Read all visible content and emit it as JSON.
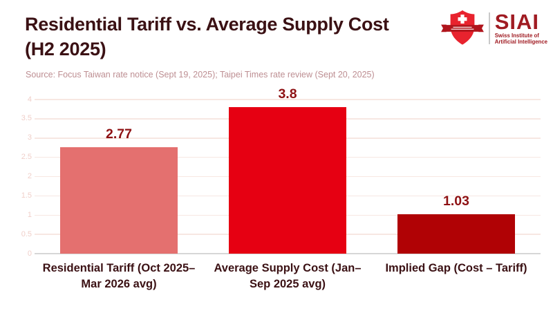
{
  "header": {
    "title_line1": "Residential Tariff vs. Average Supply Cost",
    "title_line2": "(H2 2025)",
    "source": "Source: Focus Taiwan rate notice (Sept 19, 2025); Taipei Times rate review (Sept 20, 2025)"
  },
  "logo": {
    "acronym": "SIAI",
    "name_line1": "Swiss Institute of",
    "name_line2": "Artificial Intelligence",
    "shield_icon": "swiss-shield-cross-ribbon-icon",
    "colors": {
      "shield_red": "#e8232e",
      "ribbon_dark_red": "#b0151c",
      "text_dark_red": "#a01b22"
    }
  },
  "chart_data": {
    "type": "bar",
    "title": "Residential Tariff vs. Average Supply Cost (H2 2025)",
    "categories": [
      "Residential Tariff (Oct 2025– Mar 2026 avg)",
      "Average Supply Cost (Jan– Sep 2025 avg)",
      "Implied Gap (Cost – Tariff)"
    ],
    "category_lines": [
      [
        "Residential Tariff (Oct 2025–",
        "Mar 2026 avg)"
      ],
      [
        "Average Supply Cost (Jan–",
        "Sep 2025 avg)"
      ],
      [
        "Implied Gap (Cost – Tariff)"
      ]
    ],
    "category_ids": [
      "residential-tariff",
      "average-supply-cost",
      "implied-gap"
    ],
    "values": [
      2.77,
      3.8,
      1.03
    ],
    "value_labels": [
      "2.77",
      "3.8",
      "1.03"
    ],
    "bar_colors": [
      "#e4706f",
      "#e60012",
      "#b00205"
    ],
    "value_label_color": "#8e1113",
    "xlabel": "",
    "ylabel": "",
    "ylim": [
      0,
      4
    ],
    "yticks": [
      0,
      0.5,
      1,
      1.5,
      2,
      2.5,
      3,
      3.5,
      4
    ],
    "grid": true,
    "gridline_color": "#f7e7e2",
    "tick_label_color": "#f0cfc9",
    "axis_line_color": "#d6d6d6",
    "legend": "none"
  }
}
